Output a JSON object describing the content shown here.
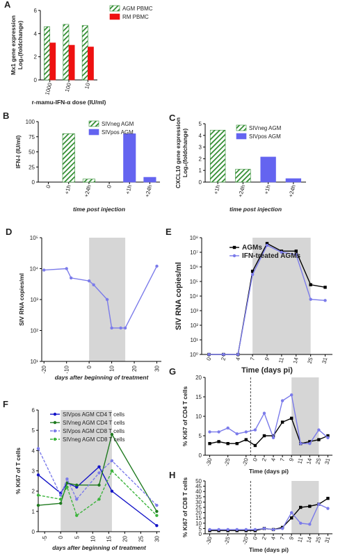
{
  "chart_data": [
    {
      "type": "bar",
      "panel": "A",
      "ylabel": [
        "Mx1 gene expression",
        "Log₂(foldchange)"
      ],
      "xlabel": "r-mamu-IFN-α dose (IU/ml)",
      "categories": [
        "1000",
        "100",
        "10"
      ],
      "series": [
        {
          "name": "AGM PBMC",
          "color": "#2e8b2e",
          "hatch": true,
          "values": [
            4.6,
            4.8,
            4.7
          ]
        },
        {
          "name": "RM PBMC",
          "color": "#ee1111",
          "values": [
            3.2,
            3.0,
            2.85
          ]
        }
      ],
      "ylim": [
        0,
        6
      ],
      "yticks": [
        0,
        2,
        4,
        6
      ]
    },
    {
      "type": "bar",
      "panel": "B",
      "ylabel": [
        "IFN-I (IU/ml)"
      ],
      "xlabel": "time post injection",
      "categories": [
        "0",
        "+1h",
        "+24h",
        "0",
        "+1h",
        "+24h"
      ],
      "series": [
        {
          "name": "SIVneg AGM",
          "color": "#2e8b2e",
          "hatch": true,
          "values": [
            0,
            80,
            5,
            null,
            null,
            null
          ]
        },
        {
          "name": "SIVpos AGM",
          "color": "#6464f0",
          "values": [
            null,
            null,
            null,
            0,
            80,
            8
          ]
        }
      ],
      "ylim": [
        0,
        100
      ],
      "yticks": [
        0,
        25,
        50,
        75,
        100
      ]
    },
    {
      "type": "bar",
      "panel": "C",
      "ylabel": [
        "CXCL10 gene expression",
        "Log₂(foldchange)"
      ],
      "xlabel": "time post injection",
      "categories": [
        "+1h",
        "+24h",
        "+1h",
        "+24h"
      ],
      "series": [
        {
          "name": "SIVneg AGM",
          "color": "#2e8b2e",
          "hatch": true,
          "values": [
            4.45,
            1.1,
            null,
            null
          ]
        },
        {
          "name": "SIVpos AGM",
          "color": "#6464f0",
          "values": [
            null,
            null,
            2.15,
            0.3
          ]
        }
      ],
      "ylim": [
        0,
        5
      ],
      "yticks": [
        0,
        1,
        2,
        3,
        4,
        5
      ]
    },
    {
      "type": "line",
      "panel": "D",
      "ylabel": [
        "SIV RNA copies/ml"
      ],
      "xlabel": "days after beginning of treatment",
      "x": [
        -20,
        -10,
        -8,
        0,
        2,
        8,
        10,
        14,
        16,
        30
      ],
      "series": [
        {
          "name": "SIV RNA",
          "color": "#7b7bea",
          "marker": "circle",
          "values": [
            9000,
            10000,
            5000,
            4000,
            3000,
            1000,
            120,
            120,
            120,
            12000
          ]
        }
      ],
      "xlim": [
        -21,
        32
      ],
      "xticks": [
        -20,
        -10,
        0,
        10,
        20,
        30
      ],
      "shaded_range": [
        0,
        16
      ],
      "log": true,
      "ylim": [
        10,
        100000
      ],
      "yticks": [
        {
          "value": 10,
          "label": "10¹"
        },
        {
          "value": 100,
          "label": "10²"
        },
        {
          "value": 1000,
          "label": "10³"
        },
        {
          "value": 10000,
          "label": "10⁴"
        },
        {
          "value": 100000,
          "label": "10⁵"
        }
      ]
    },
    {
      "type": "line",
      "panel": "E",
      "ylabel": [
        "SIV RNA copies/ml"
      ],
      "xlabel": "Time (days pi)",
      "categories": [
        "0",
        "2",
        "4",
        "7",
        "9",
        "11",
        "14",
        "25",
        "31"
      ],
      "shaded_range": [
        "7",
        "25"
      ],
      "series": [
        {
          "name": "AGMs",
          "color": "#000000",
          "marker": "square",
          "values": [
            1,
            1,
            1,
            500000,
            40000000,
            12000000,
            12000000,
            60000,
            40000
          ]
        },
        {
          "name": "IFN-treated AGMs",
          "color": "#7b7bea",
          "marker": "circle",
          "values": [
            1,
            1,
            1,
            300000,
            30000000,
            10000000,
            7000000,
            6000,
            5000
          ]
        }
      ],
      "log": true,
      "ylim": [
        1,
        100000000
      ],
      "yticks": [
        {
          "value": 1,
          "label": "10⁰"
        },
        {
          "value": 10,
          "label": "10¹"
        },
        {
          "value": 100,
          "label": "10²"
        },
        {
          "value": 1000,
          "label": "10³"
        },
        {
          "value": 10000,
          "label": "10⁴"
        },
        {
          "value": 100000,
          "label": "10⁵"
        },
        {
          "value": 1000000,
          "label": "10⁶"
        },
        {
          "value": 10000000,
          "label": "10⁷"
        },
        {
          "value": 100000000,
          "label": "10⁸"
        }
      ]
    },
    {
      "type": "line",
      "panel": "F",
      "ylabel": [
        "% Ki67 of T cells"
      ],
      "xlabel": "days after beginning of treatment",
      "x": [
        -7,
        0,
        2,
        5,
        12,
        16,
        30
      ],
      "series": [
        {
          "name": "SIVpos AGM CD4 T cells",
          "color": "#1414c8",
          "marker": "circle",
          "values": [
            2.8,
            1.9,
            2.4,
            2.2,
            3.2,
            2.0,
            0.3
          ]
        },
        {
          "name": "SIVneg AGM CD4 T cells",
          "color": "#1f7a1f",
          "marker": "circle",
          "values": [
            1.3,
            1.4,
            2.4,
            2.3,
            2.3,
            4.8,
            1.0
          ]
        },
        {
          "name": "SIVpos AGM CD8 T cells",
          "color": "#7b7bea",
          "marker": "circle",
          "dashed": true,
          "values": [
            4.1,
            1.8,
            2.6,
            1.6,
            2.9,
            3.5,
            1.3
          ]
        },
        {
          "name": "SIVneg AGM CD8 T cells",
          "color": "#3cb43c",
          "marker": "circle",
          "dashed": true,
          "values": [
            1.8,
            1.6,
            2.2,
            0.8,
            1.6,
            3.0,
            0.8
          ]
        }
      ],
      "xlim": [
        -7,
        31
      ],
      "xticks": [
        -5,
        0,
        5,
        10,
        15,
        20,
        25,
        30
      ],
      "shaded_range": [
        0,
        16
      ],
      "ylim": [
        0,
        6
      ],
      "yticks": [
        0,
        1,
        2,
        3,
        4,
        5,
        6
      ]
    },
    {
      "type": "line",
      "panel": "G",
      "ylabel": [
        "% Ki67 of CD4 T cells"
      ],
      "xlabel": "Time (days pi)",
      "categories": [
        "-30",
        null,
        "-25",
        null,
        "-20",
        "0",
        "2",
        "4",
        "7",
        "9",
        "11",
        "14",
        "25",
        "31"
      ],
      "shaded_range": [
        "9",
        "25"
      ],
      "series": [
        {
          "name": "AGMs",
          "color": "#000000",
          "marker": "square",
          "values": [
            3,
            3.5,
            3,
            3,
            4,
            2.5,
            5,
            5,
            8.5,
            9.5,
            3,
            3.5,
            4,
            5
          ]
        },
        {
          "name": "IFN-treated AGMs",
          "color": "#7b7bea",
          "marker": "circle",
          "values": [
            6,
            6,
            7,
            5.5,
            6,
            6.5,
            10.8,
            4.5,
            14,
            15.5,
            3,
            3,
            6.5,
            4.5
          ]
        }
      ],
      "ylim": [
        0,
        20
      ],
      "yticks": [
        0,
        5,
        10,
        15,
        20
      ]
    },
    {
      "type": "line",
      "panel": "H",
      "ylabel": [
        "% Ki67 of CD8 T cells"
      ],
      "xlabel": "Time (days pi)",
      "categories": [
        "-30",
        null,
        "-25",
        null,
        "-20",
        "0",
        "2",
        "4",
        "7",
        "9",
        "11",
        "14",
        "25",
        "31"
      ],
      "shaded_range": [
        "9",
        "25"
      ],
      "series": [
        {
          "name": "AGMs",
          "color": "#000000",
          "marker": "square",
          "values": [
            3,
            3,
            3,
            3,
            3,
            3,
            5,
            4,
            6,
            15,
            25,
            26,
            28,
            33.5
          ]
        },
        {
          "name": "IFN-treated AGMs",
          "color": "#7b7bea",
          "marker": "circle",
          "values": [
            4,
            4,
            4,
            4,
            4,
            4,
            5,
            4,
            5,
            20,
            10,
            9,
            28,
            24
          ]
        }
      ],
      "ylim": [
        0,
        50
      ],
      "yticks": [
        0,
        5,
        10,
        15,
        20,
        25,
        30,
        35,
        40,
        45,
        50
      ]
    }
  ]
}
